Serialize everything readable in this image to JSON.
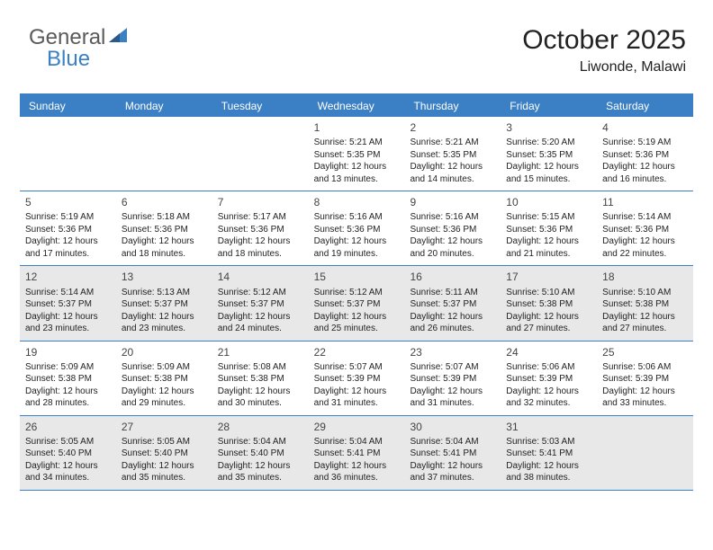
{
  "logo": {
    "text1": "General",
    "text2": "Blue"
  },
  "header": {
    "month_title": "October 2025",
    "location": "Liwonde, Malawi"
  },
  "colors": {
    "header_bg": "#3b7fc4",
    "shade": "#e8e8e8",
    "border": "#3b7fc4"
  },
  "weekdays": [
    "Sunday",
    "Monday",
    "Tuesday",
    "Wednesday",
    "Thursday",
    "Friday",
    "Saturday"
  ],
  "weeks": [
    [
      {
        "empty": true
      },
      {
        "empty": true
      },
      {
        "empty": true
      },
      {
        "day": "1",
        "sunrise": "Sunrise: 5:21 AM",
        "sunset": "Sunset: 5:35 PM",
        "daylight": "Daylight: 12 hours and 13 minutes."
      },
      {
        "day": "2",
        "sunrise": "Sunrise: 5:21 AM",
        "sunset": "Sunset: 5:35 PM",
        "daylight": "Daylight: 12 hours and 14 minutes."
      },
      {
        "day": "3",
        "sunrise": "Sunrise: 5:20 AM",
        "sunset": "Sunset: 5:35 PM",
        "daylight": "Daylight: 12 hours and 15 minutes."
      },
      {
        "day": "4",
        "sunrise": "Sunrise: 5:19 AM",
        "sunset": "Sunset: 5:36 PM",
        "daylight": "Daylight: 12 hours and 16 minutes."
      }
    ],
    [
      {
        "day": "5",
        "sunrise": "Sunrise: 5:19 AM",
        "sunset": "Sunset: 5:36 PM",
        "daylight": "Daylight: 12 hours and 17 minutes."
      },
      {
        "day": "6",
        "sunrise": "Sunrise: 5:18 AM",
        "sunset": "Sunset: 5:36 PM",
        "daylight": "Daylight: 12 hours and 18 minutes."
      },
      {
        "day": "7",
        "sunrise": "Sunrise: 5:17 AM",
        "sunset": "Sunset: 5:36 PM",
        "daylight": "Daylight: 12 hours and 18 minutes."
      },
      {
        "day": "8",
        "sunrise": "Sunrise: 5:16 AM",
        "sunset": "Sunset: 5:36 PM",
        "daylight": "Daylight: 12 hours and 19 minutes."
      },
      {
        "day": "9",
        "sunrise": "Sunrise: 5:16 AM",
        "sunset": "Sunset: 5:36 PM",
        "daylight": "Daylight: 12 hours and 20 minutes."
      },
      {
        "day": "10",
        "sunrise": "Sunrise: 5:15 AM",
        "sunset": "Sunset: 5:36 PM",
        "daylight": "Daylight: 12 hours and 21 minutes."
      },
      {
        "day": "11",
        "sunrise": "Sunrise: 5:14 AM",
        "sunset": "Sunset: 5:36 PM",
        "daylight": "Daylight: 12 hours and 22 minutes."
      }
    ],
    [
      {
        "day": "12",
        "shaded": true,
        "sunrise": "Sunrise: 5:14 AM",
        "sunset": "Sunset: 5:37 PM",
        "daylight": "Daylight: 12 hours and 23 minutes."
      },
      {
        "day": "13",
        "shaded": true,
        "sunrise": "Sunrise: 5:13 AM",
        "sunset": "Sunset: 5:37 PM",
        "daylight": "Daylight: 12 hours and 23 minutes."
      },
      {
        "day": "14",
        "shaded": true,
        "sunrise": "Sunrise: 5:12 AM",
        "sunset": "Sunset: 5:37 PM",
        "daylight": "Daylight: 12 hours and 24 minutes."
      },
      {
        "day": "15",
        "shaded": true,
        "sunrise": "Sunrise: 5:12 AM",
        "sunset": "Sunset: 5:37 PM",
        "daylight": "Daylight: 12 hours and 25 minutes."
      },
      {
        "day": "16",
        "shaded": true,
        "sunrise": "Sunrise: 5:11 AM",
        "sunset": "Sunset: 5:37 PM",
        "daylight": "Daylight: 12 hours and 26 minutes."
      },
      {
        "day": "17",
        "shaded": true,
        "sunrise": "Sunrise: 5:10 AM",
        "sunset": "Sunset: 5:38 PM",
        "daylight": "Daylight: 12 hours and 27 minutes."
      },
      {
        "day": "18",
        "shaded": true,
        "sunrise": "Sunrise: 5:10 AM",
        "sunset": "Sunset: 5:38 PM",
        "daylight": "Daylight: 12 hours and 27 minutes."
      }
    ],
    [
      {
        "day": "19",
        "sunrise": "Sunrise: 5:09 AM",
        "sunset": "Sunset: 5:38 PM",
        "daylight": "Daylight: 12 hours and 28 minutes."
      },
      {
        "day": "20",
        "sunrise": "Sunrise: 5:09 AM",
        "sunset": "Sunset: 5:38 PM",
        "daylight": "Daylight: 12 hours and 29 minutes."
      },
      {
        "day": "21",
        "sunrise": "Sunrise: 5:08 AM",
        "sunset": "Sunset: 5:38 PM",
        "daylight": "Daylight: 12 hours and 30 minutes."
      },
      {
        "day": "22",
        "sunrise": "Sunrise: 5:07 AM",
        "sunset": "Sunset: 5:39 PM",
        "daylight": "Daylight: 12 hours and 31 minutes."
      },
      {
        "day": "23",
        "sunrise": "Sunrise: 5:07 AM",
        "sunset": "Sunset: 5:39 PM",
        "daylight": "Daylight: 12 hours and 31 minutes."
      },
      {
        "day": "24",
        "sunrise": "Sunrise: 5:06 AM",
        "sunset": "Sunset: 5:39 PM",
        "daylight": "Daylight: 12 hours and 32 minutes."
      },
      {
        "day": "25",
        "sunrise": "Sunrise: 5:06 AM",
        "sunset": "Sunset: 5:39 PM",
        "daylight": "Daylight: 12 hours and 33 minutes."
      }
    ],
    [
      {
        "day": "26",
        "shaded": true,
        "sunrise": "Sunrise: 5:05 AM",
        "sunset": "Sunset: 5:40 PM",
        "daylight": "Daylight: 12 hours and 34 minutes."
      },
      {
        "day": "27",
        "shaded": true,
        "sunrise": "Sunrise: 5:05 AM",
        "sunset": "Sunset: 5:40 PM",
        "daylight": "Daylight: 12 hours and 35 minutes."
      },
      {
        "day": "28",
        "shaded": true,
        "sunrise": "Sunrise: 5:04 AM",
        "sunset": "Sunset: 5:40 PM",
        "daylight": "Daylight: 12 hours and 35 minutes."
      },
      {
        "day": "29",
        "shaded": true,
        "sunrise": "Sunrise: 5:04 AM",
        "sunset": "Sunset: 5:41 PM",
        "daylight": "Daylight: 12 hours and 36 minutes."
      },
      {
        "day": "30",
        "shaded": true,
        "sunrise": "Sunrise: 5:04 AM",
        "sunset": "Sunset: 5:41 PM",
        "daylight": "Daylight: 12 hours and 37 minutes."
      },
      {
        "day": "31",
        "shaded": true,
        "sunrise": "Sunrise: 5:03 AM",
        "sunset": "Sunset: 5:41 PM",
        "daylight": "Daylight: 12 hours and 38 minutes."
      },
      {
        "empty": true,
        "shaded": true
      }
    ]
  ]
}
